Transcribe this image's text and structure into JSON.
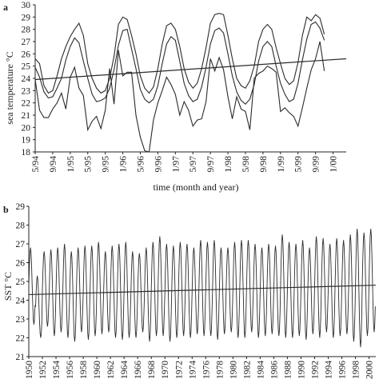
{
  "colors": {
    "line": "#2b2b2b",
    "axis": "#222222",
    "background": "#ffffff"
  },
  "chart_data": [
    {
      "panel_label": "a",
      "type": "line",
      "xlabel": "time (month and year)",
      "ylabel": "sea temperature °C",
      "ylim": [
        18,
        30
      ],
      "yticks": [
        18,
        19,
        20,
        21,
        22,
        23,
        24,
        25,
        26,
        27,
        28,
        29,
        30
      ],
      "grid": false,
      "x_start": "5/94",
      "x_end": "4/00",
      "xtick_labels": [
        "5/94",
        "9/94",
        "1/95",
        "5/95",
        "9/95",
        "1/96",
        "5/96",
        "9/96",
        "1/97",
        "5/97",
        "9/97",
        "1/98",
        "5/98",
        "9/98",
        "1/99",
        "5/99",
        "9/99",
        "1/00"
      ],
      "series": [
        {
          "values": [
            25.6,
            25.2,
            23.4,
            22.8,
            23.0,
            24.2,
            25.6,
            26.6,
            27.4,
            28.0,
            28.5,
            27.5,
            25.2,
            24.0,
            23.2,
            22.8,
            23.0,
            24.0,
            25.8,
            28.4,
            29.0,
            28.8,
            27.5,
            26.0,
            24.2,
            23.2,
            22.8,
            23.3,
            24.8,
            26.8,
            28.3,
            28.5,
            28.0,
            26.6,
            24.8,
            23.7,
            23.2,
            23.6,
            24.8,
            26.5,
            28.5,
            29.2,
            29.3,
            29.2,
            27.5,
            25.6,
            24.0,
            23.4,
            23.2,
            23.8,
            25.0,
            27.0,
            28.0,
            28.4,
            28.0,
            26.5,
            25.2,
            24.0,
            23.5,
            23.8,
            25.3,
            27.5,
            29.0,
            28.7,
            29.2,
            28.9,
            27.6
          ]
        },
        {
          "values": [
            24.9,
            24.1,
            22.9,
            22.4,
            22.5,
            23.2,
            24.0,
            25.5,
            26.6,
            27.3,
            26.9,
            25.4,
            24.0,
            22.7,
            22.1,
            22.2,
            22.4,
            23.2,
            24.7,
            26.7,
            27.9,
            28.0,
            26.4,
            24.8,
            23.1,
            22.3,
            22.0,
            22.3,
            23.4,
            25.2,
            26.8,
            27.4,
            27.1,
            25.4,
            23.6,
            22.6,
            22.1,
            22.3,
            23.3,
            24.9,
            26.8,
            27.9,
            28.1,
            27.7,
            26.0,
            24.2,
            22.9,
            22.2,
            21.9,
            22.3,
            23.5,
            25.4,
            26.6,
            27.0,
            26.6,
            25.0,
            23.6,
            22.7,
            22.1,
            22.3,
            23.6,
            25.5,
            27.2,
            28.4,
            28.6,
            28.1,
            27.1
          ]
        },
        {
          "values": [
            23.9,
            21.4,
            20.8,
            20.8,
            21.5,
            22.0,
            22.8,
            21.5,
            24.1,
            24.9,
            23.2,
            22.6,
            19.8,
            20.5,
            20.9,
            19.9,
            21.4,
            24.8,
            21.9,
            26.3,
            24.2,
            24.5,
            24.5,
            21.0,
            19.2,
            18.1,
            18.0,
            20.6,
            22.0,
            23.0,
            24.1,
            23.5,
            22.7,
            21.0,
            22.1,
            21.4,
            20.1,
            20.6,
            20.7,
            22.1,
            25.6,
            24.6,
            25.7,
            24.7,
            22.5,
            20.7,
            22.5,
            21.5,
            21.3,
            19.8,
            24.0,
            24.4,
            24.6,
            25.0,
            24.8,
            24.5,
            21.3,
            21.6,
            21.2,
            20.9,
            20.1,
            21.6,
            23.2,
            24.7,
            25.6,
            27.0,
            24.6
          ]
        }
      ],
      "trend": {
        "start": 23.9,
        "end": 25.6
      }
    },
    {
      "panel_label": "b",
      "type": "line",
      "xlabel": "",
      "ylabel": "SST °C",
      "ylim": [
        21,
        29
      ],
      "yticks": [
        21,
        22,
        23,
        24,
        25,
        26,
        27,
        28,
        29
      ],
      "grid": false,
      "x_range": [
        1950,
        2000.99
      ],
      "xtick_labels": [
        "1950",
        "1952",
        "1954",
        "1956",
        "1958",
        "1960",
        "1962",
        "1964",
        "1966",
        "1968",
        "1970",
        "1972",
        "1974",
        "1976",
        "1978",
        "1980",
        "1982",
        "1984",
        "1986",
        "1988",
        "1990",
        "1992",
        "1994",
        "1996",
        "1998",
        "2000"
      ],
      "monthly_series": {
        "start_year": 1950,
        "peak_month": 3,
        "annual_max": [
          26.8,
          25.3,
          26.6,
          26.7,
          26.8,
          27.0,
          26.6,
          26.8,
          26.9,
          26.9,
          27.1,
          26.6,
          26.9,
          27.0,
          27.1,
          26.6,
          26.5,
          26.8,
          27.1,
          27.4,
          27.0,
          26.9,
          27.1,
          27.0,
          26.8,
          27.2,
          27.1,
          27.2,
          26.8,
          26.8,
          27.1,
          27.2,
          27.2,
          27.0,
          26.8,
          27.0,
          26.9,
          27.5,
          27.1,
          27.0,
          27.2,
          26.8,
          27.4,
          27.3,
          27.0,
          27.3,
          27.2,
          27.5,
          27.8,
          27.6,
          27.8
        ],
        "annual_min": [
          22.7,
          22.0,
          22.6,
          22.1,
          22.3,
          22.0,
          21.8,
          22.3,
          21.9,
          22.1,
          22.2,
          22.3,
          22.0,
          21.9,
          22.0,
          22.0,
          22.3,
          21.8,
          22.1,
          22.1,
          21.8,
          22.0,
          22.1,
          22.0,
          22.2,
          22.1,
          22.1,
          21.9,
          22.2,
          22.3,
          22.0,
          22.0,
          22.3,
          22.0,
          22.1,
          22.2,
          22.1,
          22.0,
          22.0,
          22.1,
          21.9,
          22.2,
          22.0,
          22.3,
          22.0,
          22.1,
          22.2,
          21.8,
          21.5,
          22.1,
          22.3
        ]
      },
      "trend": {
        "start": 24.3,
        "end": 24.8
      }
    }
  ]
}
